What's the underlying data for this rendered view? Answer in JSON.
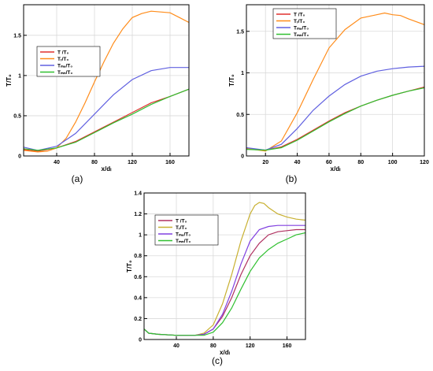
{
  "figure": {
    "subfigure_labels": [
      "(a)",
      "(b)",
      "(c)"
    ]
  },
  "chart_data": [
    {
      "id": "a",
      "type": "line",
      "xlabel": "x/dₗ",
      "ylabel": "T/T₀",
      "xlim": [
        5,
        180
      ],
      "ylim": [
        0,
        1.88
      ],
      "xticks": [
        40,
        80,
        120,
        160
      ],
      "yticks": [
        0,
        0.5,
        1,
        1.5
      ],
      "yticklabels": [
        "0",
        "0.5",
        "1",
        "1.5"
      ],
      "grid": true,
      "legend_position": "top-left",
      "legend": [
        "T /T₀",
        "Tᵣ/T₀",
        "Tₘₑ/T₀",
        "Tₘₙ/T₀"
      ],
      "series": [
        {
          "name": "T /T₀",
          "color": "#e0312f",
          "x": [
            5,
            20,
            40,
            60,
            80,
            100,
            120,
            140,
            160,
            180
          ],
          "y": [
            0.08,
            0.06,
            0.1,
            0.18,
            0.3,
            0.42,
            0.54,
            0.66,
            0.74,
            0.83
          ]
        },
        {
          "name": "Tᵣ/T₀",
          "color": "#ff8c1a",
          "x": [
            5,
            20,
            30,
            40,
            50,
            60,
            70,
            80,
            90,
            100,
            110,
            120,
            130,
            140,
            150,
            160,
            170,
            180
          ],
          "y": [
            0.07,
            0.05,
            0.06,
            0.1,
            0.22,
            0.42,
            0.66,
            0.92,
            1.17,
            1.4,
            1.58,
            1.72,
            1.77,
            1.8,
            1.79,
            1.78,
            1.72,
            1.66
          ]
        },
        {
          "name": "Tₘₑ/T₀",
          "color": "#6060e0",
          "x": [
            5,
            20,
            40,
            60,
            80,
            100,
            120,
            140,
            160,
            180
          ],
          "y": [
            0.11,
            0.07,
            0.12,
            0.28,
            0.52,
            0.76,
            0.95,
            1.06,
            1.1,
            1.1
          ]
        },
        {
          "name": "Tₘₙ/T₀",
          "color": "#30c030",
          "x": [
            5,
            20,
            40,
            60,
            80,
            100,
            120,
            140,
            160,
            180
          ],
          "y": [
            0.09,
            0.07,
            0.1,
            0.17,
            0.29,
            0.41,
            0.52,
            0.64,
            0.74,
            0.83
          ]
        }
      ]
    },
    {
      "id": "b",
      "type": "line",
      "xlabel": "x/dₗ",
      "ylabel": "T/T₀",
      "xlim": [
        8,
        120
      ],
      "ylim": [
        0,
        1.82
      ],
      "xticks": [
        20,
        40,
        60,
        80,
        100,
        120
      ],
      "yticks": [
        0,
        0.5,
        1,
        1.5
      ],
      "yticklabels": [
        "0",
        "0.5",
        "1",
        "1.5"
      ],
      "grid": true,
      "legend_position": "top-left",
      "legend": [
        "T /T₀",
        "Tᵣ/T₀",
        "Tₘₑ/T₀",
        "Tₘₙ/T₀"
      ],
      "series": [
        {
          "name": "T /T₀",
          "color": "#e0312f",
          "x": [
            8,
            20,
            30,
            40,
            50,
            60,
            70,
            80,
            90,
            100,
            110,
            120
          ],
          "y": [
            0.09,
            0.07,
            0.11,
            0.2,
            0.31,
            0.42,
            0.52,
            0.6,
            0.67,
            0.73,
            0.78,
            0.83
          ]
        },
        {
          "name": "Tᵣ/T₀",
          "color": "#ff8c1a",
          "x": [
            8,
            20,
            30,
            40,
            50,
            60,
            70,
            80,
            85,
            90,
            95,
            100,
            105,
            110,
            120
          ],
          "y": [
            0.09,
            0.06,
            0.18,
            0.52,
            0.92,
            1.3,
            1.52,
            1.66,
            1.68,
            1.7,
            1.72,
            1.7,
            1.69,
            1.65,
            1.58
          ]
        },
        {
          "name": "Tₘₑ/T₀",
          "color": "#6060e0",
          "x": [
            8,
            20,
            30,
            40,
            50,
            60,
            70,
            80,
            90,
            100,
            110,
            120
          ],
          "y": [
            0.1,
            0.07,
            0.14,
            0.33,
            0.55,
            0.72,
            0.86,
            0.96,
            1.02,
            1.05,
            1.07,
            1.08
          ]
        },
        {
          "name": "Tₘₙ/T₀",
          "color": "#30c030",
          "x": [
            8,
            20,
            30,
            40,
            50,
            60,
            70,
            80,
            90,
            100,
            110,
            120
          ],
          "y": [
            0.08,
            0.07,
            0.1,
            0.19,
            0.3,
            0.41,
            0.51,
            0.6,
            0.67,
            0.73,
            0.78,
            0.82
          ]
        }
      ]
    },
    {
      "id": "c",
      "type": "line",
      "xlabel": "x/dₗ",
      "ylabel": "T/T₀",
      "xlim": [
        5,
        180
      ],
      "ylim": [
        0,
        1.4
      ],
      "xticks": [
        40,
        80,
        120,
        160
      ],
      "yticks": [
        0,
        0.2,
        0.4,
        0.6,
        0.8,
        1,
        1.2,
        1.4
      ],
      "yticklabels": [
        "0",
        "0.2",
        "0.4",
        "0.6",
        "0.8",
        "1",
        "1.2",
        "1.4"
      ],
      "grid": true,
      "legend_position": "top-left",
      "legend": [
        "T /T₀",
        "Tᵣ/T₀",
        "Tₘₑ/T₀",
        "Tₘₙ/T₀"
      ],
      "series": [
        {
          "name": "T /T₀",
          "color": "#b03060",
          "x": [
            5,
            10,
            20,
            40,
            60,
            70,
            80,
            90,
            100,
            110,
            120,
            130,
            140,
            150,
            160,
            170,
            180
          ],
          "y": [
            0.1,
            0.06,
            0.05,
            0.04,
            0.04,
            0.05,
            0.1,
            0.22,
            0.4,
            0.62,
            0.8,
            0.92,
            1.0,
            1.03,
            1.04,
            1.05,
            1.05
          ]
        },
        {
          "name": "Tᵣ/T₀",
          "color": "#c8b030",
          "x": [
            5,
            10,
            20,
            40,
            60,
            70,
            80,
            90,
            100,
            110,
            120,
            125,
            130,
            135,
            140,
            150,
            160,
            170,
            180
          ],
          "y": [
            0.1,
            0.06,
            0.05,
            0.04,
            0.04,
            0.06,
            0.14,
            0.34,
            0.62,
            0.94,
            1.2,
            1.28,
            1.31,
            1.3,
            1.26,
            1.2,
            1.17,
            1.15,
            1.14
          ]
        },
        {
          "name": "Tₘₑ/T₀",
          "color": "#8040e0",
          "x": [
            5,
            10,
            20,
            40,
            60,
            70,
            80,
            90,
            100,
            110,
            120,
            130,
            140,
            150,
            160,
            170,
            180
          ],
          "y": [
            0.1,
            0.06,
            0.05,
            0.04,
            0.04,
            0.05,
            0.1,
            0.24,
            0.46,
            0.72,
            0.94,
            1.05,
            1.08,
            1.09,
            1.09,
            1.09,
            1.09
          ]
        },
        {
          "name": "Tₘₙ/T₀",
          "color": "#30c030",
          "x": [
            5,
            10,
            20,
            40,
            60,
            70,
            80,
            90,
            100,
            110,
            120,
            130,
            140,
            150,
            160,
            170,
            180
          ],
          "y": [
            0.1,
            0.06,
            0.05,
            0.04,
            0.04,
            0.04,
            0.07,
            0.16,
            0.3,
            0.48,
            0.65,
            0.78,
            0.86,
            0.92,
            0.96,
            1.0,
            1.02
          ]
        }
      ]
    }
  ]
}
